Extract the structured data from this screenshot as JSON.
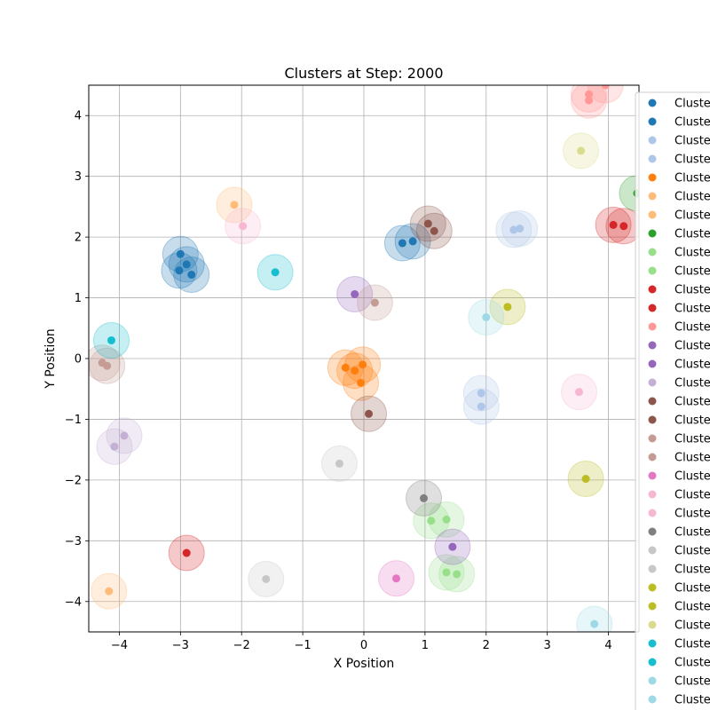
{
  "chart_data": {
    "type": "scatter",
    "title": "Clusters at Step: 2000",
    "xlabel": "X Position",
    "ylabel": "Y Position",
    "xlim": [
      -4.5,
      4.5
    ],
    "ylim": [
      -4.5,
      4.5
    ],
    "xticks": [
      -4,
      -3,
      -2,
      -1,
      0,
      1,
      2,
      3,
      4
    ],
    "yticks": [
      -4,
      -3,
      -2,
      -1,
      0,
      1,
      2,
      3,
      4
    ],
    "grid": true,
    "legend_placement": "right, outside plot (clipped)",
    "marker_halo_alpha": 0.25,
    "series": [
      {
        "name": "Cluste",
        "color": "#1f77b4",
        "points": [
          [
            -3.0,
            1.72
          ],
          [
            -2.9,
            1.55
          ],
          [
            -2.82,
            1.38
          ],
          [
            -3.02,
            1.45
          ]
        ]
      },
      {
        "name": "Cluste",
        "color": "#1f77b4",
        "points": [
          [
            0.63,
            1.9
          ],
          [
            0.8,
            1.93
          ]
        ]
      },
      {
        "name": "Cluste",
        "color": "#aec7e8",
        "points": [
          [
            2.45,
            2.12
          ],
          [
            2.55,
            2.14
          ]
        ]
      },
      {
        "name": "Cluste",
        "color": "#aec7e8",
        "points": [
          [
            1.92,
            -0.57
          ],
          [
            1.92,
            -0.79
          ]
        ]
      },
      {
        "name": "Cluste",
        "color": "#ff7f0e",
        "points": [
          [
            -0.3,
            -0.15
          ],
          [
            -0.15,
            -0.2
          ],
          [
            -0.02,
            -0.1
          ],
          [
            -0.05,
            -0.4
          ]
        ]
      },
      {
        "name": "Cluste",
        "color": "#ffbb78",
        "points": [
          [
            -2.12,
            2.53
          ]
        ]
      },
      {
        "name": "Cluste",
        "color": "#ffbb78",
        "points": [
          [
            -4.17,
            -3.83
          ]
        ]
      },
      {
        "name": "Cluste",
        "color": "#2ca02c",
        "points": [
          [
            4.47,
            2.72
          ]
        ]
      },
      {
        "name": "Cluste",
        "color": "#98df8a",
        "points": [
          [
            1.1,
            -2.67
          ],
          [
            1.35,
            -2.65
          ]
        ]
      },
      {
        "name": "Cluste",
        "color": "#98df8a",
        "points": [
          [
            1.35,
            -3.52
          ],
          [
            1.52,
            -3.55
          ]
        ]
      },
      {
        "name": "Cluste",
        "color": "#d62728",
        "points": [
          [
            4.08,
            2.2
          ],
          [
            4.25,
            2.18
          ]
        ]
      },
      {
        "name": "Cluste",
        "color": "#d62728",
        "points": [
          [
            -2.9,
            -3.2
          ]
        ]
      },
      {
        "name": "Cluste",
        "color": "#ff9896",
        "points": [
          [
            3.68,
            4.25
          ],
          [
            3.68,
            4.35
          ],
          [
            3.95,
            4.5
          ]
        ]
      },
      {
        "name": "Cluste",
        "color": "#9467bd",
        "points": [
          [
            -0.15,
            1.06
          ]
        ]
      },
      {
        "name": "Cluste",
        "color": "#9467bd",
        "points": [
          [
            1.45,
            -3.1
          ]
        ]
      },
      {
        "name": "Cluste",
        "color": "#c5b0d5",
        "points": [
          [
            -3.92,
            -1.27
          ],
          [
            -4.08,
            -1.45
          ]
        ]
      },
      {
        "name": "Cluste",
        "color": "#8c564b",
        "points": [
          [
            1.05,
            2.22
          ],
          [
            1.15,
            2.1
          ]
        ]
      },
      {
        "name": "Cluste",
        "color": "#8c564b",
        "points": [
          [
            0.08,
            -0.91
          ]
        ]
      },
      {
        "name": "Cluste",
        "color": "#c49c94",
        "points": [
          [
            0.18,
            0.92
          ]
        ]
      },
      {
        "name": "Cluste",
        "color": "#c49c94",
        "points": [
          [
            -4.28,
            -0.07
          ],
          [
            -4.2,
            -0.12
          ]
        ]
      },
      {
        "name": "Cluste",
        "color": "#e377c2",
        "points": [
          [
            0.53,
            -3.62
          ]
        ]
      },
      {
        "name": "Cluste",
        "color": "#f7b6d2",
        "points": [
          [
            -1.98,
            2.18
          ]
        ]
      },
      {
        "name": "Cluste",
        "color": "#f7b6d2",
        "points": [
          [
            3.52,
            -0.55
          ]
        ]
      },
      {
        "name": "Cluste",
        "color": "#7f7f7f",
        "points": [
          [
            0.98,
            -2.3
          ]
        ]
      },
      {
        "name": "Cluste",
        "color": "#c7c7c7",
        "points": [
          [
            -0.4,
            -1.73
          ]
        ]
      },
      {
        "name": "Cluste",
        "color": "#c7c7c7",
        "points": [
          [
            -1.6,
            -3.63
          ]
        ]
      },
      {
        "name": "Cluste",
        "color": "#bcbd22",
        "points": [
          [
            2.35,
            0.85
          ]
        ]
      },
      {
        "name": "Cluste",
        "color": "#bcbd22",
        "points": [
          [
            3.63,
            -1.98
          ]
        ]
      },
      {
        "name": "Cluste",
        "color": "#dbdb8d",
        "points": [
          [
            3.55,
            3.42
          ]
        ]
      },
      {
        "name": "Cluste",
        "color": "#17becf",
        "points": [
          [
            -1.45,
            1.42
          ]
        ]
      },
      {
        "name": "Cluste",
        "color": "#17becf",
        "points": [
          [
            -4.13,
            0.3
          ]
        ]
      },
      {
        "name": "Cluste",
        "color": "#9edae5",
        "points": [
          [
            2.0,
            0.68
          ]
        ]
      },
      {
        "name": "Cluste",
        "color": "#9edae5",
        "points": [
          [
            3.77,
            -4.37
          ]
        ]
      }
    ]
  }
}
